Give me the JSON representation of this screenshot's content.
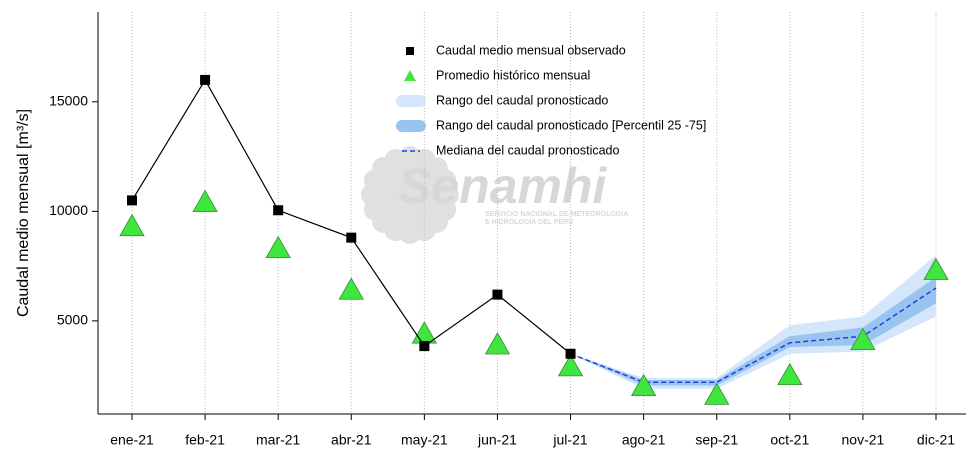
{
  "chart_data": {
    "type": "line",
    "y_label": "Caudal medio mensual  [m³/s]",
    "watermark": {
      "title": "Senamhi",
      "subtitle": [
        "SERVICIO NACIONAL DE METEOROLOGÍA",
        "E HIDROLOGÍA DEL PERÚ"
      ]
    },
    "categories": [
      "ene-21",
      "feb-21",
      "mar-21",
      "abr-21",
      "may-21",
      "jun-21",
      "jul-21",
      "ago-21",
      "sep-21",
      "oct-21",
      "nov-21",
      "dic-21"
    ],
    "ylim": [
      750,
      19100
    ],
    "yticks": [
      5000,
      10000,
      15000
    ],
    "x_grid": true,
    "series": [
      {
        "name": "Caudal medio mensual observado",
        "marker": "square",
        "color": "#000000",
        "values": [
          10500,
          16000,
          10050,
          8800,
          3850,
          6200,
          3500,
          null,
          null,
          null,
          null,
          null
        ]
      },
      {
        "name": "Promedio histórico mensual",
        "marker": "triangle",
        "color": "#3ee63e",
        "values": [
          9300,
          10400,
          8300,
          6400,
          4400,
          3900,
          2900,
          2000,
          1600,
          2500,
          4100,
          7300
        ]
      },
      {
        "name": "Rango del caudal pronosticado",
        "marker": "band",
        "color": "#d3e6fa",
        "low": [
          null,
          null,
          null,
          null,
          null,
          null,
          3500,
          1900,
          1900,
          3500,
          3600,
          5200
        ],
        "high": [
          null,
          null,
          null,
          null,
          null,
          null,
          3500,
          2400,
          2400,
          4800,
          5200,
          8000
        ]
      },
      {
        "name": "Rango del caudal pronosticado [Percentil 25 -75]",
        "marker": "band",
        "color": "#99c4ef",
        "low": [
          null,
          null,
          null,
          null,
          null,
          null,
          3500,
          2050,
          2050,
          3800,
          3900,
          5800
        ],
        "high": [
          null,
          null,
          null,
          null,
          null,
          null,
          3500,
          2300,
          2300,
          4300,
          4700,
          7000
        ]
      },
      {
        "name": "Mediana del caudal pronosticado",
        "marker": "dashed",
        "color": "#2040e0",
        "values": [
          null,
          null,
          null,
          null,
          null,
          null,
          3500,
          2200,
          2200,
          4000,
          4300,
          6500
        ]
      }
    ]
  }
}
